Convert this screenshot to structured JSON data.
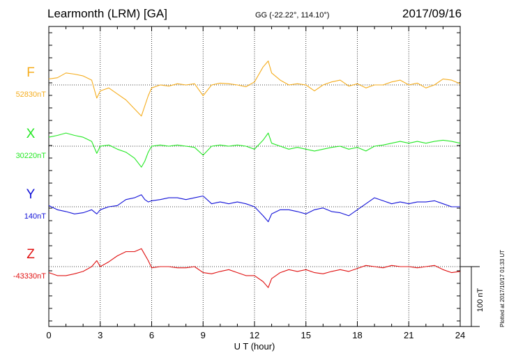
{
  "header": {
    "station": "Learmonth (LRM)  [GA]",
    "coords": "GG (-22.22°, 114.10°)",
    "date": "2017/09/16"
  },
  "plotted_note": "Plotted at 2017/10/17 01:33 UT",
  "colors": {
    "F": "#f5ad1e",
    "X": "#22e822",
    "Y": "#1010d8",
    "Z": "#e01010",
    "grid": "#000000"
  },
  "chart_data": {
    "type": "line",
    "title": "Learmonth (LRM)  [GA]",
    "xlabel": "U T (hour)",
    "xlim": [
      0,
      24
    ],
    "xticks": [
      0,
      3,
      6,
      9,
      12,
      15,
      18,
      21,
      24
    ],
    "scale_bar": {
      "label": "100 nT",
      "value_nT": 100
    },
    "grid": true,
    "series": [
      {
        "name": "F",
        "baseline_label": "52830nT",
        "baseline": 52830,
        "x": [
          0,
          0.5,
          1,
          1.5,
          2,
          2.5,
          2.8,
          3,
          3.5,
          4,
          4.5,
          5,
          5.4,
          5.6,
          5.8,
          6,
          6.5,
          7,
          7.5,
          8,
          8.5,
          9,
          9.5,
          10,
          10.5,
          11,
          11.5,
          12,
          12.5,
          12.8,
          13,
          13.5,
          14,
          14.5,
          15,
          15.5,
          16,
          16.5,
          17,
          17.5,
          18,
          18.5,
          19,
          19.5,
          20,
          20.5,
          21,
          21.5,
          22,
          22.5,
          23,
          23.5,
          24
        ],
        "y": [
          10,
          12,
          20,
          18,
          15,
          8,
          -22,
          -10,
          -5,
          -15,
          -25,
          -40,
          -52,
          -35,
          -18,
          -5,
          0,
          -2,
          2,
          0,
          2,
          -18,
          0,
          3,
          2,
          0,
          -3,
          5,
          30,
          40,
          20,
          8,
          0,
          2,
          0,
          -10,
          0,
          5,
          8,
          -2,
          2,
          -5,
          0,
          0,
          5,
          8,
          0,
          3,
          -5,
          0,
          10,
          8,
          2
        ]
      },
      {
        "name": "X",
        "baseline_label": "30220nT",
        "baseline": 30220,
        "x": [
          0,
          0.5,
          1,
          1.5,
          2,
          2.5,
          2.8,
          3,
          3.5,
          4,
          4.5,
          5,
          5.4,
          5.6,
          5.8,
          6,
          6.5,
          7,
          7.5,
          8,
          8.5,
          9,
          9.5,
          10,
          10.5,
          11,
          11.5,
          12,
          12.5,
          12.8,
          13,
          13.5,
          14,
          14.5,
          15,
          15.5,
          16,
          16.5,
          17,
          17.5,
          18,
          18.5,
          19,
          19.5,
          20,
          20.5,
          21,
          21.5,
          22,
          22.5,
          23,
          23.5,
          24
        ],
        "y": [
          15,
          18,
          22,
          18,
          15,
          8,
          -12,
          0,
          2,
          -5,
          -10,
          -20,
          -35,
          -25,
          -10,
          0,
          2,
          0,
          2,
          0,
          -2,
          -15,
          0,
          2,
          0,
          2,
          0,
          -5,
          10,
          22,
          5,
          0,
          -5,
          -2,
          -5,
          -8,
          -5,
          -2,
          0,
          -5,
          -2,
          -8,
          0,
          2,
          5,
          8,
          5,
          8,
          5,
          8,
          10,
          8,
          5
        ]
      },
      {
        "name": "Y",
        "baseline_label": "140nT",
        "baseline": 140,
        "x": [
          0,
          0.5,
          1,
          1.5,
          2,
          2.5,
          2.8,
          3,
          3.5,
          4,
          4.5,
          5,
          5.4,
          5.6,
          5.8,
          6,
          6.5,
          7,
          7.5,
          8,
          8.5,
          9,
          9.5,
          10,
          10.5,
          11,
          11.5,
          12,
          12.5,
          12.8,
          13,
          13.5,
          14,
          14.5,
          15,
          15.5,
          16,
          16.5,
          17,
          17.5,
          18,
          18.5,
          19,
          19.5,
          20,
          20.5,
          21,
          21.5,
          22,
          22.5,
          23,
          23.5,
          24
        ],
        "y": [
          2,
          -5,
          -8,
          -12,
          -10,
          -5,
          -12,
          -5,
          0,
          2,
          12,
          15,
          20,
          12,
          8,
          10,
          12,
          15,
          15,
          12,
          15,
          18,
          5,
          8,
          5,
          8,
          5,
          0,
          -15,
          -25,
          -12,
          -5,
          -5,
          -8,
          -12,
          -5,
          -2,
          -8,
          -10,
          -15,
          -5,
          5,
          15,
          10,
          5,
          8,
          5,
          8,
          8,
          10,
          5,
          0,
          0
        ]
      },
      {
        "name": "Z",
        "baseline_label": "-43330nT",
        "baseline": -43330,
        "x": [
          0,
          0.5,
          1,
          1.5,
          2,
          2.5,
          2.8,
          3,
          3.5,
          4,
          4.5,
          5,
          5.4,
          5.6,
          5.8,
          6,
          6.5,
          7,
          7.5,
          8,
          8.5,
          9,
          9.5,
          10,
          10.5,
          11,
          11.5,
          12,
          12.5,
          12.8,
          13,
          13.5,
          14,
          14.5,
          15,
          15.5,
          16,
          16.5,
          17,
          17.5,
          18,
          18.5,
          19,
          19.5,
          20,
          20.5,
          21,
          21.5,
          22,
          22.5,
          23,
          23.5,
          24
        ],
        "y": [
          -10,
          -15,
          -15,
          -12,
          -8,
          0,
          10,
          0,
          8,
          18,
          25,
          25,
          30,
          20,
          10,
          -2,
          0,
          0,
          -2,
          -2,
          0,
          -10,
          -12,
          -8,
          -5,
          -10,
          -15,
          -15,
          -25,
          -35,
          -20,
          -10,
          -5,
          -8,
          -5,
          -10,
          -12,
          -8,
          -5,
          -8,
          -3,
          2,
          0,
          -2,
          2,
          0,
          0,
          -2,
          0,
          2,
          -5,
          -10,
          -8
        ]
      }
    ]
  }
}
